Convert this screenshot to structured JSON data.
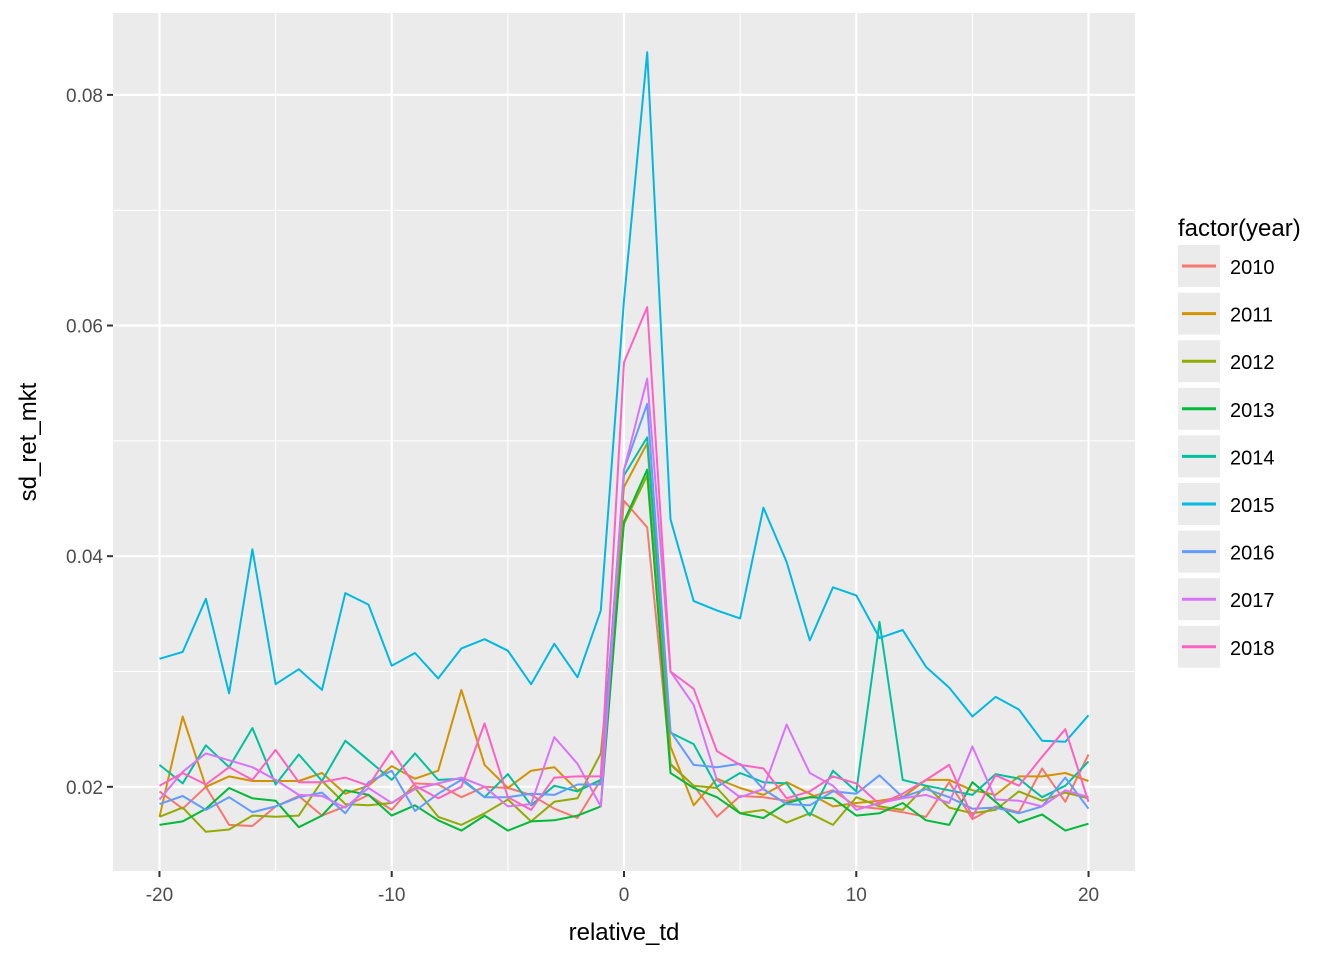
{
  "chart_data": {
    "type": "line",
    "title": "",
    "xlabel": "relative_td",
    "ylabel": "sd_ret_mkt",
    "xlim": [
      -22,
      22
    ],
    "ylim": [
      0.0127,
      0.0871
    ],
    "x_ticks": [
      -20,
      -10,
      0,
      10,
      20
    ],
    "x_tick_labels": [
      "-20",
      "-10",
      "0",
      "10",
      "20"
    ],
    "y_ticks": [
      0.02,
      0.04,
      0.06,
      0.08
    ],
    "y_tick_labels": [
      "0.02",
      "0.04",
      "0.06",
      "0.08"
    ],
    "grid": true,
    "legend": {
      "title": "factor(year)",
      "placement": "right"
    },
    "x": [
      -20,
      -19,
      -18,
      -17,
      -16,
      -15,
      -14,
      -13,
      -12,
      -11,
      -10,
      -9,
      -8,
      -7,
      -6,
      -5,
      -4,
      -3,
      -2,
      -1,
      0,
      1,
      2,
      3,
      4,
      5,
      6,
      7,
      8,
      9,
      10,
      11,
      12,
      13,
      14,
      15,
      16,
      17,
      18,
      19,
      20
    ],
    "series": [
      {
        "name": "2010",
        "color": "#F8766D",
        "values": [
          0.0196,
          0.0181,
          0.02,
          0.0167,
          0.0166,
          0.0183,
          0.0192,
          0.0175,
          0.0183,
          0.0193,
          0.018,
          0.0203,
          0.0202,
          0.0191,
          0.02,
          0.0199,
          0.0193,
          0.0181,
          0.0173,
          0.0206,
          0.0448,
          0.0425,
          0.0219,
          0.0201,
          0.0174,
          0.0192,
          0.0191,
          0.0188,
          0.0191,
          0.0197,
          0.0183,
          0.0181,
          0.0178,
          0.0174,
          0.0204,
          0.0172,
          0.0183,
          0.0178,
          0.0216,
          0.0187,
          0.0228
        ]
      },
      {
        "name": "2011",
        "color": "#D39200",
        "values": [
          0.0174,
          0.0261,
          0.02,
          0.0209,
          0.0205,
          0.0205,
          0.0205,
          0.0212,
          0.0194,
          0.0201,
          0.0218,
          0.0207,
          0.0214,
          0.0284,
          0.0219,
          0.0199,
          0.0214,
          0.0217,
          0.0197,
          0.0206,
          0.046,
          0.0498,
          0.0235,
          0.0184,
          0.0207,
          0.0199,
          0.0193,
          0.0204,
          0.0194,
          0.0183,
          0.0186,
          0.0188,
          0.0191,
          0.0206,
          0.0206,
          0.0197,
          0.0193,
          0.0209,
          0.0209,
          0.0212,
          0.0205
        ]
      },
      {
        "name": "2012",
        "color": "#93AA00",
        "values": [
          0.0174,
          0.0182,
          0.0161,
          0.0163,
          0.0175,
          0.0174,
          0.0175,
          0.0205,
          0.0185,
          0.0184,
          0.0186,
          0.0199,
          0.0174,
          0.0167,
          0.0177,
          0.0189,
          0.017,
          0.0187,
          0.019,
          0.0229,
          0.0428,
          0.047,
          0.022,
          0.0201,
          0.0199,
          0.0177,
          0.018,
          0.0169,
          0.0177,
          0.0167,
          0.0191,
          0.0183,
          0.018,
          0.0201,
          0.0182,
          0.0177,
          0.018,
          0.0196,
          0.0188,
          0.0195,
          0.019
        ]
      },
      {
        "name": "2013",
        "color": "#00BA38",
        "values": [
          0.0167,
          0.017,
          0.0181,
          0.0199,
          0.019,
          0.0188,
          0.0165,
          0.0175,
          0.0197,
          0.0193,
          0.0175,
          0.0184,
          0.0171,
          0.0162,
          0.0175,
          0.0162,
          0.017,
          0.0171,
          0.0175,
          0.0183,
          0.043,
          0.0475,
          0.0212,
          0.0199,
          0.0191,
          0.0177,
          0.0173,
          0.0186,
          0.0191,
          0.019,
          0.0175,
          0.0177,
          0.0186,
          0.0171,
          0.0167,
          0.0204,
          0.0187,
          0.0169,
          0.0176,
          0.0162,
          0.0168
        ]
      },
      {
        "name": "2014",
        "color": "#00C19F",
        "values": [
          0.0219,
          0.0203,
          0.0236,
          0.0217,
          0.0251,
          0.0202,
          0.0228,
          0.0205,
          0.024,
          0.0223,
          0.0206,
          0.0229,
          0.0206,
          0.0207,
          0.0191,
          0.0211,
          0.0184,
          0.0201,
          0.0196,
          0.0206,
          0.047,
          0.0503,
          0.0247,
          0.0237,
          0.02,
          0.0212,
          0.0204,
          0.0203,
          0.0175,
          0.0214,
          0.0196,
          0.0343,
          0.0206,
          0.0201,
          0.0197,
          0.0193,
          0.0211,
          0.0207,
          0.0191,
          0.0201,
          0.0222
        ]
      },
      {
        "name": "2015",
        "color": "#00B9E3",
        "values": [
          0.0311,
          0.0317,
          0.0363,
          0.0281,
          0.0406,
          0.0289,
          0.0302,
          0.0284,
          0.0368,
          0.0358,
          0.0305,
          0.0316,
          0.0294,
          0.032,
          0.0328,
          0.0318,
          0.0289,
          0.0324,
          0.0295,
          0.0353,
          0.0622,
          0.0837,
          0.0432,
          0.0361,
          0.0353,
          0.0346,
          0.0442,
          0.0395,
          0.0327,
          0.0373,
          0.0366,
          0.0329,
          0.0336,
          0.0304,
          0.0286,
          0.0261,
          0.0278,
          0.0267,
          0.024,
          0.0239,
          0.0262
        ]
      },
      {
        "name": "2016",
        "color": "#619CFF",
        "values": [
          0.0185,
          0.0192,
          0.018,
          0.0191,
          0.0178,
          0.0183,
          0.0191,
          0.0195,
          0.0177,
          0.0204,
          0.0214,
          0.0179,
          0.0194,
          0.0206,
          0.0191,
          0.0191,
          0.0194,
          0.0193,
          0.0202,
          0.0202,
          0.0475,
          0.0532,
          0.0248,
          0.0219,
          0.0217,
          0.022,
          0.0198,
          0.0185,
          0.0184,
          0.0196,
          0.0194,
          0.021,
          0.0191,
          0.0198,
          0.0191,
          0.0181,
          0.0182,
          0.0177,
          0.0183,
          0.0208,
          0.0181
        ]
      },
      {
        "name": "2017",
        "color": "#DB72FB",
        "values": [
          0.0189,
          0.0213,
          0.0229,
          0.0223,
          0.0217,
          0.0206,
          0.0193,
          0.0192,
          0.0182,
          0.0199,
          0.0186,
          0.0198,
          0.0203,
          0.0208,
          0.02,
          0.0183,
          0.0185,
          0.0243,
          0.022,
          0.0183,
          0.0475,
          0.0554,
          0.03,
          0.0271,
          0.0206,
          0.0191,
          0.0198,
          0.0254,
          0.0212,
          0.0201,
          0.018,
          0.0186,
          0.019,
          0.0193,
          0.0186,
          0.0235,
          0.0189,
          0.0188,
          0.0183,
          0.0197,
          0.0191
        ]
      },
      {
        "name": "2018",
        "color": "#FF61C3",
        "values": [
          0.0201,
          0.0212,
          0.0202,
          0.0217,
          0.0206,
          0.0232,
          0.0204,
          0.0204,
          0.0208,
          0.0201,
          0.0231,
          0.0201,
          0.019,
          0.02,
          0.0255,
          0.0191,
          0.018,
          0.0208,
          0.0209,
          0.0209,
          0.0568,
          0.0616,
          0.03,
          0.0285,
          0.0231,
          0.0219,
          0.0216,
          0.019,
          0.0196,
          0.0209,
          0.0203,
          0.0185,
          0.0194,
          0.0206,
          0.0219,
          0.0174,
          0.021,
          0.0201,
          0.0226,
          0.025,
          0.0187
        ]
      }
    ]
  }
}
